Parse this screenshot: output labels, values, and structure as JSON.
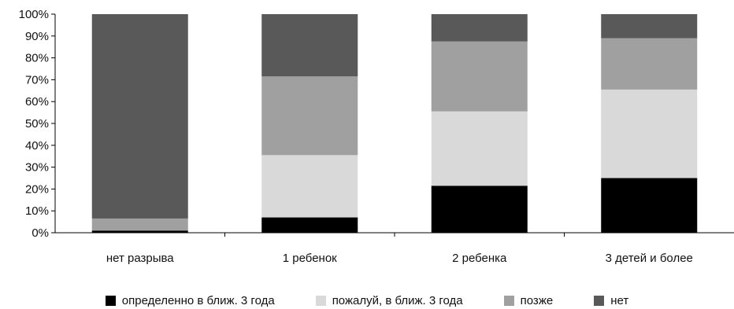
{
  "chart_data": {
    "type": "bar",
    "stacked": true,
    "percent": true,
    "categories": [
      "нет разрыва",
      "1 ребенок",
      "2 ребенка",
      "3 детей и более"
    ],
    "series": [
      {
        "name": "определенно в ближ. 3 года",
        "color": "#000000",
        "values": [
          1,
          7,
          21.5,
          25
        ]
      },
      {
        "name": "пожалуй, в ближ. 3 года",
        "color": "#d9d9d9",
        "values": [
          0,
          28.5,
          34,
          40.5
        ]
      },
      {
        "name": "позже",
        "color": "#a0a0a0",
        "values": [
          5.5,
          36,
          32,
          23.5
        ]
      },
      {
        "name": "нет",
        "color": "#595959",
        "values": [
          93.5,
          28.5,
          12.5,
          11
        ]
      }
    ],
    "y_ticks": [
      "0%",
      "10%",
      "20%",
      "30%",
      "40%",
      "50%",
      "60%",
      "70%",
      "80%",
      "90%",
      "100%"
    ],
    "ylim": [
      0,
      100
    ],
    "grid": false,
    "legend_position": "bottom"
  }
}
